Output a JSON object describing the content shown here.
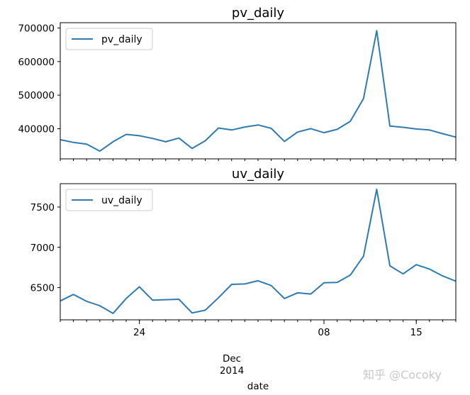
{
  "chart_data": [
    {
      "type": "line",
      "title": "pv_daily",
      "legend": [
        "pv_daily"
      ],
      "legend_position": "upper-left",
      "grid": false,
      "color": "#2f7bb0",
      "xlim": [
        "2014-11-18",
        "2014-12-18"
      ],
      "ylim": [
        310000,
        716000
      ],
      "yticks": [
        400000,
        500000,
        600000,
        700000
      ],
      "ytick_labels": [
        "400000",
        "500000",
        "600000",
        "700000"
      ],
      "series": [
        {
          "name": "pv_daily",
          "x": [
            "2014-11-18",
            "2014-11-19",
            "2014-11-20",
            "2014-11-21",
            "2014-11-22",
            "2014-11-23",
            "2014-11-24",
            "2014-11-25",
            "2014-11-26",
            "2014-11-27",
            "2014-11-28",
            "2014-11-29",
            "2014-11-30",
            "2014-12-01",
            "2014-12-02",
            "2014-12-03",
            "2014-12-04",
            "2014-12-05",
            "2014-12-06",
            "2014-12-07",
            "2014-12-08",
            "2014-12-09",
            "2014-12-10",
            "2014-12-11",
            "2014-12-12",
            "2014-12-13",
            "2014-12-14",
            "2014-12-15",
            "2014-12-16",
            "2014-12-17",
            "2014-12-18"
          ],
          "values": [
            367000,
            359000,
            354000,
            333000,
            361000,
            383000,
            379000,
            371000,
            361000,
            372000,
            341000,
            364000,
            402000,
            396000,
            405000,
            411000,
            401000,
            362000,
            390000,
            400000,
            388000,
            398000,
            422000,
            490000,
            692000,
            408000,
            404000,
            399000,
            396000,
            385000,
            375000
          ]
        }
      ]
    },
    {
      "type": "line",
      "title": "uv_daily",
      "legend": [
        "uv_daily"
      ],
      "legend_position": "upper-left",
      "grid": false,
      "color": "#2f7bb0",
      "xlim": [
        "2014-11-18",
        "2014-12-18"
      ],
      "ylim": [
        6100,
        7790
      ],
      "yticks": [
        6500,
        7000,
        7500
      ],
      "ytick_labels": [
        "6500",
        "7000",
        "7500"
      ],
      "xticks_major": [
        "2014-11-24",
        "2014-12-08",
        "2014-12-15"
      ],
      "xtick_major_labels": [
        "24",
        "08",
        "15"
      ],
      "xlabel_month": "Dec",
      "xlabel_year": "2014",
      "xlabel": "date",
      "series": [
        {
          "name": "uv_daily",
          "x": [
            "2014-11-18",
            "2014-11-19",
            "2014-11-20",
            "2014-11-21",
            "2014-11-22",
            "2014-11-23",
            "2014-11-24",
            "2014-11-25",
            "2014-11-26",
            "2014-11-27",
            "2014-11-28",
            "2014-11-29",
            "2014-11-30",
            "2014-12-01",
            "2014-12-02",
            "2014-12-03",
            "2014-12-04",
            "2014-12-05",
            "2014-12-06",
            "2014-12-07",
            "2014-12-08",
            "2014-12-09",
            "2014-12-10",
            "2014-12-11",
            "2014-12-12",
            "2014-12-13",
            "2014-12-14",
            "2014-12-15",
            "2014-12-16",
            "2014-12-17",
            "2014-12-18"
          ],
          "values": [
            6335,
            6415,
            6330,
            6275,
            6180,
            6365,
            6510,
            6345,
            6350,
            6355,
            6185,
            6220,
            6375,
            6540,
            6545,
            6585,
            6525,
            6365,
            6435,
            6420,
            6560,
            6565,
            6655,
            6890,
            7720,
            6770,
            6670,
            6785,
            6730,
            6645,
            6580
          ]
        }
      ]
    }
  ],
  "watermark": "知乎 @Cocoky"
}
